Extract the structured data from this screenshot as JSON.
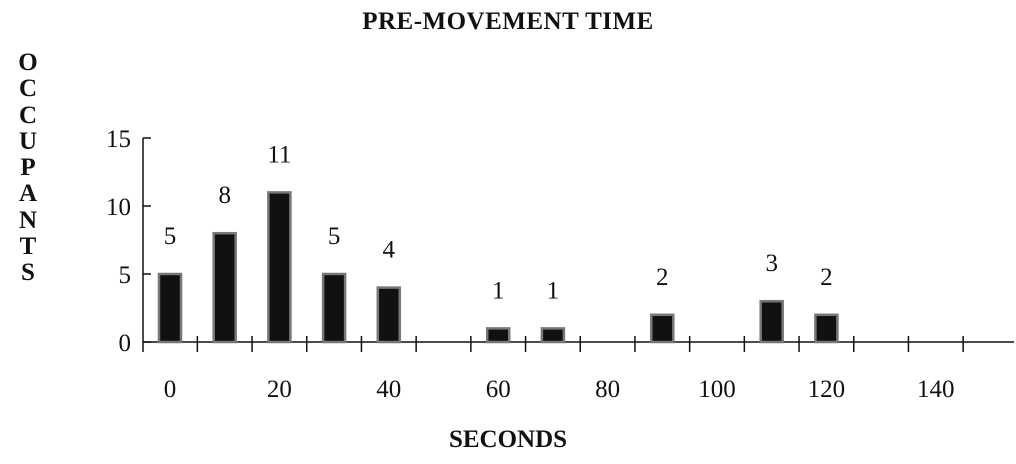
{
  "chart_data": {
    "type": "bar",
    "title": "PRE-MOVEMENT TIME",
    "xlabel": "SECONDS",
    "ylabel": "OCCUPANTS",
    "x": [
      0,
      10,
      20,
      30,
      40,
      60,
      70,
      90,
      110,
      120
    ],
    "values": [
      5,
      8,
      11,
      5,
      4,
      1,
      1,
      2,
      3,
      2
    ],
    "data_labels": [
      "5",
      "8",
      "11",
      "5",
      "4",
      "1",
      "1",
      "2",
      "3",
      "2"
    ],
    "xticks": [
      "0",
      "20",
      "40",
      "60",
      "80",
      "100",
      "120",
      "140"
    ],
    "yticks": [
      "0",
      "5",
      "10",
      "15"
    ],
    "xlim": [
      -5,
      155
    ],
    "ylim": [
      0,
      15
    ],
    "grid": false,
    "legend": "none",
    "bar_color": "#111111"
  }
}
